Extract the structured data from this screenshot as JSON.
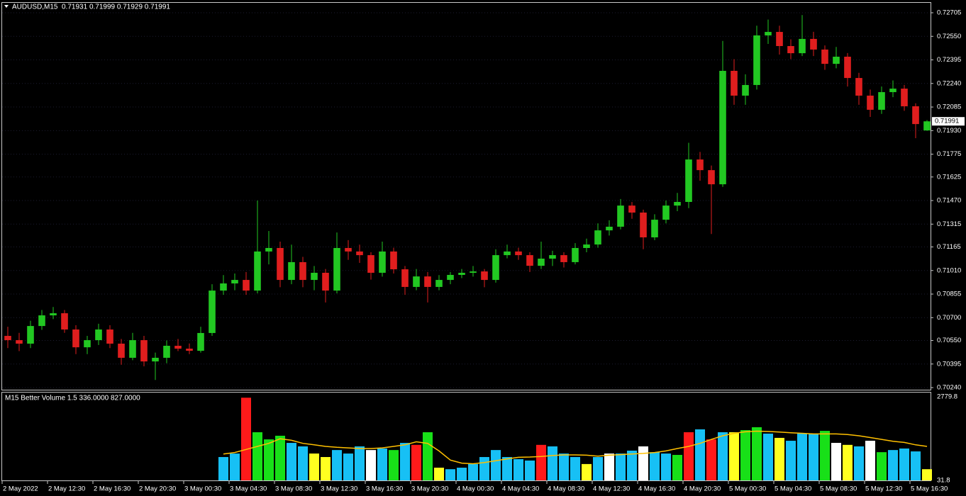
{
  "chart_data": [
    {
      "type": "candlestick",
      "title": "AUDUSD,M15  0.71931 0.71999 0.71929 0.71991",
      "up_color": "#22c822",
      "down_color": "#e01e1e",
      "grid": true,
      "xlim": [
        0,
        82
      ],
      "ylim": [
        0.7024,
        0.72705
      ],
      "yticks": [
        0.72705,
        {
          "value": 0.7255,
          "label": "0.72550"
        },
        0.72395,
        {
          "value": 0.7224,
          "label": "0.72240"
        },
        0.72085,
        {
          "value": 0.7193,
          "label": "0.71930"
        },
        0.71775,
        0.71625,
        {
          "value": 0.7147,
          "label": "0.71470"
        },
        0.71315,
        0.71165,
        {
          "value": 0.7101,
          "label": "0.71010"
        },
        0.70855,
        {
          "value": 0.707,
          "label": "0.70700"
        },
        {
          "value": 0.7055,
          "label": "0.70550"
        },
        0.70395,
        {
          "value": 0.7024,
          "label": "0.70240"
        }
      ],
      "last_price": 0.71991,
      "ohlc": [
        [
          0.7058,
          0.7064,
          0.705,
          0.70552
        ],
        [
          0.70552,
          0.706,
          0.7048,
          0.70529
        ],
        [
          0.70529,
          0.7068,
          0.705,
          0.70645
        ],
        [
          0.70645,
          0.7075,
          0.7062,
          0.70715
        ],
        [
          0.70715,
          0.7077,
          0.7069,
          0.70729
        ],
        [
          0.70729,
          0.7075,
          0.706,
          0.70622
        ],
        [
          0.70622,
          0.7065,
          0.7046,
          0.70505
        ],
        [
          0.70505,
          0.7058,
          0.7046,
          0.70552
        ],
        [
          0.70552,
          0.7066,
          0.7052,
          0.70622
        ],
        [
          0.70622,
          0.7065,
          0.705,
          0.70529
        ],
        [
          0.70529,
          0.7056,
          0.7039,
          0.70436
        ],
        [
          0.70436,
          0.706,
          0.7042,
          0.70552
        ],
        [
          0.70552,
          0.7058,
          0.7038,
          0.70412
        ],
        [
          0.70412,
          0.7047,
          0.7029,
          0.70436
        ],
        [
          0.70436,
          0.7055,
          0.704,
          0.70515
        ],
        [
          0.70515,
          0.7056,
          0.7048,
          0.70496
        ],
        [
          0.70496,
          0.7053,
          0.7046,
          0.70482
        ],
        [
          0.70482,
          0.7064,
          0.7047,
          0.70599
        ],
        [
          0.70599,
          0.7092,
          0.7058,
          0.70878
        ],
        [
          0.70878,
          0.7098,
          0.7085,
          0.70925
        ],
        [
          0.70925,
          0.7099,
          0.7088,
          0.70948
        ],
        [
          0.70948,
          0.71,
          0.7085,
          0.70878
        ],
        [
          0.70878,
          0.7147,
          0.7086,
          0.71135
        ],
        [
          0.71135,
          0.7127,
          0.7105,
          0.71158
        ],
        [
          0.71158,
          0.712,
          0.709,
          0.70948
        ],
        [
          0.70948,
          0.7118,
          0.7092,
          0.71065
        ],
        [
          0.71065,
          0.711,
          0.709,
          0.70948
        ],
        [
          0.70948,
          0.7104,
          0.7088,
          0.70995
        ],
        [
          0.70995,
          0.7102,
          0.708,
          0.70878
        ],
        [
          0.70878,
          0.7126,
          0.7086,
          0.71158
        ],
        [
          0.71158,
          0.7121,
          0.7108,
          0.71135
        ],
        [
          0.71135,
          0.7118,
          0.7106,
          0.71111
        ],
        [
          0.71111,
          0.7113,
          0.7095,
          0.70995
        ],
        [
          0.70995,
          0.712,
          0.7097,
          0.71135
        ],
        [
          0.71135,
          0.7116,
          0.7099,
          0.71018
        ],
        [
          0.71018,
          0.7104,
          0.7085,
          0.70902
        ],
        [
          0.70902,
          0.7102,
          0.7088,
          0.70971
        ],
        [
          0.70971,
          0.71,
          0.708,
          0.70902
        ],
        [
          0.70902,
          0.7098,
          0.7088,
          0.70948
        ],
        [
          0.70948,
          0.71,
          0.7092,
          0.70981
        ],
        [
          0.70981,
          0.7102,
          0.7096,
          0.70995
        ],
        [
          0.70995,
          0.7104,
          0.7097,
          0.71004
        ],
        [
          0.71004,
          0.7102,
          0.709,
          0.70948
        ],
        [
          0.70948,
          0.7115,
          0.7093,
          0.71111
        ],
        [
          0.71111,
          0.7118,
          0.7109,
          0.71135
        ],
        [
          0.71135,
          0.7116,
          0.7108,
          0.71111
        ],
        [
          0.71111,
          0.7113,
          0.71,
          0.71041
        ],
        [
          0.71041,
          0.712,
          0.7102,
          0.71088
        ],
        [
          0.71088,
          0.7114,
          0.7104,
          0.71111
        ],
        [
          0.71111,
          0.7113,
          0.7103,
          0.71065
        ],
        [
          0.71065,
          0.7119,
          0.7105,
          0.71158
        ],
        [
          0.71158,
          0.7122,
          0.7113,
          0.71181
        ],
        [
          0.71181,
          0.7132,
          0.7116,
          0.71274
        ],
        [
          0.71274,
          0.7134,
          0.7124,
          0.71298
        ],
        [
          0.71298,
          0.7148,
          0.7128,
          0.71437
        ],
        [
          0.71437,
          0.7146,
          0.7135,
          0.71391
        ],
        [
          0.71391,
          0.7141,
          0.7115,
          0.71228
        ],
        [
          0.71228,
          0.7138,
          0.7121,
          0.71344
        ],
        [
          0.71344,
          0.7147,
          0.7132,
          0.71437
        ],
        [
          0.71437,
          0.7152,
          0.714,
          0.71461
        ],
        [
          0.71461,
          0.7185,
          0.7142,
          0.7174
        ],
        [
          0.7174,
          0.7179,
          0.716,
          0.7167
        ],
        [
          0.7167,
          0.717,
          0.7125,
          0.71577
        ],
        [
          0.71577,
          0.7252,
          0.7156,
          0.72323
        ],
        [
          0.72323,
          0.724,
          0.721,
          0.7216
        ],
        [
          0.7216,
          0.723,
          0.721,
          0.7223
        ],
        [
          0.7223,
          0.7262,
          0.722,
          0.72556
        ],
        [
          0.72556,
          0.7266,
          0.725,
          0.72579
        ],
        [
          0.72579,
          0.7262,
          0.7243,
          0.72486
        ],
        [
          0.72486,
          0.7253,
          0.724,
          0.72439
        ],
        [
          0.72439,
          0.7269,
          0.7242,
          0.72533
        ],
        [
          0.72533,
          0.7258,
          0.7242,
          0.72463
        ],
        [
          0.72463,
          0.7249,
          0.7233,
          0.72369
        ],
        [
          0.72369,
          0.7248,
          0.7234,
          0.72416
        ],
        [
          0.72416,
          0.7244,
          0.7222,
          0.72276
        ],
        [
          0.72276,
          0.7231,
          0.721,
          0.7216
        ],
        [
          0.7216,
          0.722,
          0.7202,
          0.72067
        ],
        [
          0.72067,
          0.7222,
          0.7204,
          0.72183
        ],
        [
          0.72183,
          0.7226,
          0.7215,
          0.72206
        ],
        [
          0.72206,
          0.7223,
          0.7206,
          0.7209
        ],
        [
          0.7209,
          0.7211,
          0.7188,
          0.71973
        ],
        [
          0.71931,
          0.71999,
          0.71929,
          0.71991
        ]
      ]
    },
    {
      "type": "volume",
      "title": "M15 Better Volume 1.5 336.0000 827.0000",
      "xlim": [
        0,
        82
      ],
      "ylim": [
        31.8,
        2779.8
      ],
      "yticks": [
        2779.8,
        31.8
      ],
      "xticks": [
        {
          "value": 0,
          "label": "2 May 2022"
        },
        {
          "value": 4,
          "label": "2 May 12:30"
        },
        {
          "value": 8,
          "label": "2 May 16:30"
        },
        {
          "value": 12,
          "label": "2 May 20:30"
        },
        {
          "value": 16,
          "label": "3 May 00:30"
        },
        {
          "value": 20,
          "label": "3 May 04:30"
        },
        {
          "value": 24,
          "label": "3 May 08:30"
        },
        {
          "value": 28,
          "label": "3 May 12:30"
        },
        {
          "value": 32,
          "label": "3 May 16:30"
        },
        {
          "value": 36,
          "label": "3 May 20:30"
        },
        {
          "value": 40,
          "label": "4 May 00:30"
        },
        {
          "value": 44,
          "label": "4 May 04:30"
        },
        {
          "value": 48,
          "label": "4 May 08:30"
        },
        {
          "value": 52,
          "label": "4 May 12:30"
        },
        {
          "value": 56,
          "label": "4 May 16:30"
        },
        {
          "value": 60,
          "label": "4 May 20:30"
        },
        {
          "value": 64,
          "label": "5 May 00:30"
        },
        {
          "value": 68,
          "label": "5 May 04:30"
        },
        {
          "value": 72,
          "label": "5 May 08:30"
        },
        {
          "value": 76,
          "label": "5 May 12:30"
        },
        {
          "value": 80,
          "label": "5 May 16:30"
        }
      ],
      "values": [
        null,
        null,
        null,
        null,
        null,
        null,
        null,
        null,
        null,
        null,
        null,
        null,
        null,
        null,
        null,
        null,
        null,
        null,
        null,
        800,
        915,
        2750,
        1615,
        1380,
        1500,
        1265,
        1150,
        915,
        800,
        1030,
        915,
        1150,
        1030,
        1080,
        1030,
        1265,
        1200,
        1615,
        450,
        400,
        450,
        570,
        800,
        1030,
        800,
        730,
        685,
        1200,
        1150,
        915,
        800,
        570,
        800,
        915,
        915,
        1010,
        1150,
        960,
        915,
        870,
        1615,
        1710,
        1380,
        1615,
        1615,
        1685,
        1780,
        1570,
        1430,
        1335,
        1570,
        1570,
        1660,
        1265,
        1200,
        1150,
        1335,
        960,
        1030,
        1080,
        985,
        400
      ],
      "colors": [
        null,
        null,
        null,
        null,
        null,
        null,
        null,
        null,
        null,
        null,
        null,
        null,
        null,
        null,
        null,
        null,
        null,
        null,
        null,
        "#17c0f5",
        "#17c0f5",
        "#ff1a1a",
        "#18e018",
        "#18e018",
        "#18e018",
        "#17c0f5",
        "#17c0f5",
        "#ffff20",
        "#ffff20",
        "#17c0f5",
        "#17c0f5",
        "#17c0f5",
        "#ffffff",
        "#17c0f5",
        "#18e018",
        "#17c0f5",
        "#ff1a1a",
        "#18e018",
        "#ffff20",
        "#17c0f5",
        "#17c0f5",
        "#17c0f5",
        "#17c0f5",
        "#17c0f5",
        "#17c0f5",
        "#17c0f5",
        "#17c0f5",
        "#ff1a1a",
        "#17c0f5",
        "#17c0f5",
        "#17c0f5",
        "#ffff20",
        "#17c0f5",
        "#ffffff",
        "#17c0f5",
        "#17c0f5",
        "#ffffff",
        "#17c0f5",
        "#17c0f5",
        "#18e018",
        "#ff1a1a",
        "#17c0f5",
        "#ff1a1a",
        "#17c0f5",
        "#ffff20",
        "#18e018",
        "#18e018",
        "#17c0f5",
        "#ffff20",
        "#17c0f5",
        "#17c0f5",
        "#17c0f5",
        "#18e018",
        "#ffffff",
        "#ffff20",
        "#17c0f5",
        "#ffffff",
        "#18e018",
        "#17c0f5",
        "#17c0f5",
        "#17c0f5",
        "#ffff20"
      ],
      "line": {
        "color": "#ffc000",
        "values": [
          null,
          null,
          null,
          null,
          null,
          null,
          null,
          null,
          null,
          null,
          null,
          null,
          null,
          null,
          null,
          null,
          null,
          null,
          null,
          900,
          950,
          1050,
          1150,
          1250,
          1400,
          1350,
          1250,
          1200,
          1150,
          1120,
          1100,
          1080,
          1080,
          1100,
          1150,
          1200,
          1300,
          1250,
          1000,
          700,
          600,
          580,
          620,
          680,
          740,
          790,
          800,
          820,
          850,
          870,
          870,
          860,
          830,
          860,
          880,
          900,
          920,
          950,
          1000,
          1080,
          1150,
          1250,
          1380,
          1500,
          1580,
          1630,
          1650,
          1640,
          1620,
          1600,
          1580,
          1560,
          1560,
          1560,
          1540,
          1500,
          1440,
          1380,
          1320,
          1280,
          1200,
          1150
        ]
      }
    }
  ]
}
